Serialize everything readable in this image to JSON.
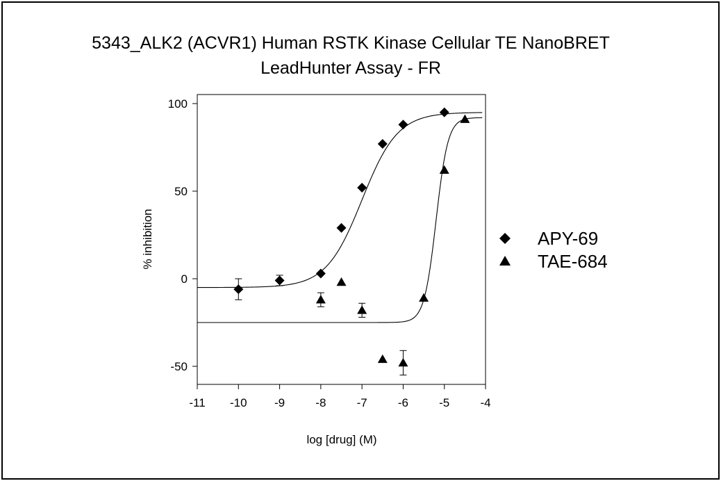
{
  "chart_data": {
    "type": "scatter",
    "title_line1": "5343_ALK2 (ACVR1) Human RSTK Kinase Cellular TE NanoBRET",
    "title_line2": "LeadHunter Assay - FR",
    "xlabel": "log [drug] (M)",
    "ylabel": "% inhibition",
    "xlim": [
      -11,
      -4
    ],
    "ylim": [
      -60,
      105
    ],
    "xticks": [
      -11,
      -10,
      -9,
      -8,
      -7,
      -6,
      -5,
      -4
    ],
    "yticks": [
      100,
      50,
      0,
      -50
    ],
    "grid": false,
    "legend_position": "right",
    "series": [
      {
        "name": "APY-69",
        "marker": "diamond",
        "color": "#000000",
        "points": [
          {
            "x": -10,
            "y": -6,
            "err": 6
          },
          {
            "x": -9,
            "y": -1,
            "err": 3
          },
          {
            "x": -8,
            "y": 3,
            "err": 0
          },
          {
            "x": -7.5,
            "y": 29,
            "err": 0
          },
          {
            "x": -7,
            "y": 52,
            "err": 0
          },
          {
            "x": -6.5,
            "y": 77,
            "err": 0
          },
          {
            "x": -6,
            "y": 88,
            "err": 0
          },
          {
            "x": -5,
            "y": 95,
            "err": 0
          }
        ],
        "fit": {
          "bottom": -5,
          "top": 95,
          "log_ec50": -7.0,
          "hill": 1.0
        }
      },
      {
        "name": "TAE-684",
        "marker": "triangle",
        "color": "#000000",
        "points": [
          {
            "x": -8,
            "y": -12,
            "err": 4
          },
          {
            "x": -7.5,
            "y": -2,
            "err": 0
          },
          {
            "x": -7,
            "y": -18,
            "err": 4
          },
          {
            "x": -6.5,
            "y": -46,
            "err": 0
          },
          {
            "x": -6,
            "y": -48,
            "err": 7
          },
          {
            "x": -5.5,
            "y": -11,
            "err": 0
          },
          {
            "x": -5,
            "y": 62,
            "err": 0
          },
          {
            "x": -4.5,
            "y": 91,
            "err": 0
          }
        ],
        "fit": {
          "bottom": -25,
          "top": 92,
          "log_ec50": -5.2,
          "hill": 3.0
        }
      }
    ]
  }
}
